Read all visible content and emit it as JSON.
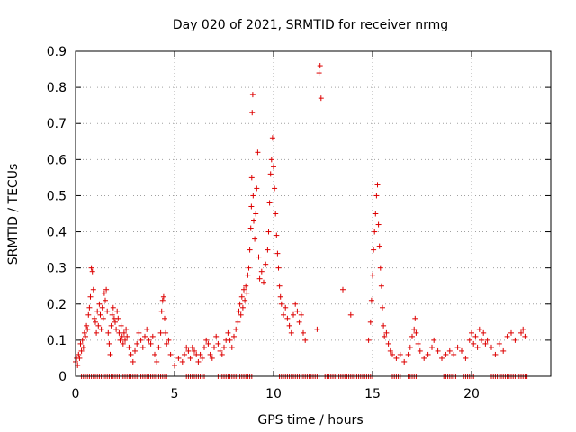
{
  "chart_data": {
    "type": "scatter",
    "title": "Day 020 of 2021, SRMTID for receiver nrmg",
    "xlabel": "GPS time / hours",
    "ylabel": "SRMTID / TECUs",
    "xlim": [
      0,
      24
    ],
    "ylim": [
      0,
      0.9
    ],
    "xticks": [
      0,
      5,
      10,
      15,
      20
    ],
    "yticks": [
      0,
      0.1,
      0.2,
      0.3,
      0.4,
      0.5,
      0.6,
      0.7,
      0.8,
      0.9
    ],
    "ytick_labels": [
      "0",
      "0.1",
      "0.2",
      "0.3",
      "0.4",
      "0.5",
      "0.6",
      "0.7",
      "0.8",
      "0.9"
    ],
    "grid": true,
    "marker": "+",
    "color": "#dd0000",
    "series": [
      {
        "name": "SRMTID",
        "points": [
          [
            0.0,
            0.04
          ],
          [
            0.05,
            0.05
          ],
          [
            0.1,
            0.03
          ],
          [
            0.15,
            0.06
          ],
          [
            0.2,
            0.05
          ],
          [
            0.25,
            0.09
          ],
          [
            0.3,
            0.07
          ],
          [
            0.35,
            0.1
          ],
          [
            0.4,
            0.08
          ],
          [
            0.45,
            0.12
          ],
          [
            0.5,
            0.11
          ],
          [
            0.55,
            0.14
          ],
          [
            0.6,
            0.13
          ],
          [
            0.65,
            0.17
          ],
          [
            0.7,
            0.19
          ],
          [
            0.75,
            0.22
          ],
          [
            0.8,
            0.3
          ],
          [
            0.85,
            0.29
          ],
          [
            0.9,
            0.24
          ],
          [
            0.95,
            0.16
          ],
          [
            1.0,
            0.15
          ],
          [
            1.05,
            0.12
          ],
          [
            1.1,
            0.18
          ],
          [
            1.15,
            0.14
          ],
          [
            1.2,
            0.2
          ],
          [
            1.25,
            0.17
          ],
          [
            1.3,
            0.13
          ],
          [
            1.35,
            0.19
          ],
          [
            1.4,
            0.16
          ],
          [
            1.45,
            0.23
          ],
          [
            1.5,
            0.21
          ],
          [
            1.55,
            0.24
          ],
          [
            1.6,
            0.18
          ],
          [
            1.65,
            0.12
          ],
          [
            1.7,
            0.09
          ],
          [
            1.75,
            0.06
          ],
          [
            1.8,
            0.14
          ],
          [
            1.85,
            0.17
          ],
          [
            1.9,
            0.19
          ],
          [
            1.95,
            0.16
          ],
          [
            2.0,
            0.15
          ],
          [
            2.05,
            0.13
          ],
          [
            2.1,
            0.18
          ],
          [
            2.15,
            0.16
          ],
          [
            2.2,
            0.12
          ],
          [
            2.25,
            0.1
          ],
          [
            2.3,
            0.14
          ],
          [
            2.35,
            0.11
          ],
          [
            2.4,
            0.09
          ],
          [
            2.45,
            0.12
          ],
          [
            2.5,
            0.1
          ],
          [
            2.55,
            0.13
          ],
          [
            2.6,
            0.11
          ],
          [
            2.7,
            0.08
          ],
          [
            2.8,
            0.06
          ],
          [
            2.9,
            0.04
          ],
          [
            3.0,
            0.07
          ],
          [
            3.1,
            0.09
          ],
          [
            3.2,
            0.12
          ],
          [
            3.3,
            0.1
          ],
          [
            3.4,
            0.08
          ],
          [
            3.5,
            0.11
          ],
          [
            3.6,
            0.13
          ],
          [
            3.7,
            0.1
          ],
          [
            3.8,
            0.09
          ],
          [
            3.9,
            0.11
          ],
          [
            4.0,
            0.06
          ],
          [
            4.1,
            0.04
          ],
          [
            4.2,
            0.08
          ],
          [
            4.3,
            0.12
          ],
          [
            4.35,
            0.18
          ],
          [
            4.4,
            0.21
          ],
          [
            4.45,
            0.22
          ],
          [
            4.5,
            0.16
          ],
          [
            4.55,
            0.12
          ],
          [
            4.6,
            0.09
          ],
          [
            4.7,
            0.1
          ],
          [
            4.8,
            0.06
          ],
          [
            5.0,
            0.03
          ],
          [
            5.2,
            0.05
          ],
          [
            5.4,
            0.04
          ],
          [
            5.5,
            0.06
          ],
          [
            5.6,
            0.08
          ],
          [
            5.7,
            0.07
          ],
          [
            5.8,
            0.05
          ],
          [
            5.9,
            0.08
          ],
          [
            6.0,
            0.07
          ],
          [
            6.1,
            0.06
          ],
          [
            6.2,
            0.04
          ],
          [
            6.3,
            0.06
          ],
          [
            6.4,
            0.05
          ],
          [
            6.5,
            0.08
          ],
          [
            6.6,
            0.1
          ],
          [
            6.7,
            0.09
          ],
          [
            6.8,
            0.06
          ],
          [
            6.9,
            0.05
          ],
          [
            7.0,
            0.08
          ],
          [
            7.1,
            0.11
          ],
          [
            7.2,
            0.09
          ],
          [
            7.3,
            0.07
          ],
          [
            7.4,
            0.06
          ],
          [
            7.5,
            0.08
          ],
          [
            7.6,
            0.1
          ],
          [
            7.7,
            0.12
          ],
          [
            7.8,
            0.1
          ],
          [
            7.9,
            0.08
          ],
          [
            8.0,
            0.11
          ],
          [
            8.1,
            0.13
          ],
          [
            8.2,
            0.15
          ],
          [
            8.25,
            0.18
          ],
          [
            8.3,
            0.2
          ],
          [
            8.35,
            0.17
          ],
          [
            8.4,
            0.22
          ],
          [
            8.45,
            0.19
          ],
          [
            8.5,
            0.24
          ],
          [
            8.55,
            0.21
          ],
          [
            8.6,
            0.25
          ],
          [
            8.65,
            0.23
          ],
          [
            8.7,
            0.28
          ],
          [
            8.75,
            0.3
          ],
          [
            8.8,
            0.35
          ],
          [
            8.85,
            0.41
          ],
          [
            8.88,
            0.47
          ],
          [
            8.9,
            0.55
          ],
          [
            8.92,
            0.73
          ],
          [
            8.95,
            0.78
          ],
          [
            8.97,
            0.5
          ],
          [
            9.0,
            0.43
          ],
          [
            9.05,
            0.38
          ],
          [
            9.1,
            0.45
          ],
          [
            9.15,
            0.52
          ],
          [
            9.2,
            0.62
          ],
          [
            9.25,
            0.33
          ],
          [
            9.3,
            0.27
          ],
          [
            9.4,
            0.29
          ],
          [
            9.5,
            0.26
          ],
          [
            9.6,
            0.31
          ],
          [
            9.7,
            0.35
          ],
          [
            9.75,
            0.4
          ],
          [
            9.8,
            0.48
          ],
          [
            9.85,
            0.56
          ],
          [
            9.9,
            0.6
          ],
          [
            9.95,
            0.66
          ],
          [
            10.0,
            0.58
          ],
          [
            10.05,
            0.52
          ],
          [
            10.1,
            0.45
          ],
          [
            10.15,
            0.39
          ],
          [
            10.2,
            0.34
          ],
          [
            10.25,
            0.3
          ],
          [
            10.3,
            0.25
          ],
          [
            10.35,
            0.22
          ],
          [
            10.4,
            0.2
          ],
          [
            10.5,
            0.17
          ],
          [
            10.6,
            0.19
          ],
          [
            10.7,
            0.16
          ],
          [
            10.8,
            0.14
          ],
          [
            10.9,
            0.12
          ],
          [
            11.0,
            0.17
          ],
          [
            11.1,
            0.2
          ],
          [
            11.2,
            0.18
          ],
          [
            11.3,
            0.15
          ],
          [
            11.4,
            0.17
          ],
          [
            11.5,
            0.12
          ],
          [
            11.6,
            0.1
          ],
          [
            12.2,
            0.13
          ],
          [
            12.3,
            0.84
          ],
          [
            12.35,
            0.86
          ],
          [
            12.4,
            0.77
          ],
          [
            13.5,
            0.24
          ],
          [
            13.9,
            0.17
          ],
          [
            14.8,
            0.1
          ],
          [
            14.9,
            0.15
          ],
          [
            14.95,
            0.21
          ],
          [
            15.0,
            0.28
          ],
          [
            15.05,
            0.35
          ],
          [
            15.1,
            0.4
          ],
          [
            15.15,
            0.45
          ],
          [
            15.2,
            0.5
          ],
          [
            15.25,
            0.53
          ],
          [
            15.3,
            0.42
          ],
          [
            15.35,
            0.36
          ],
          [
            15.4,
            0.3
          ],
          [
            15.45,
            0.25
          ],
          [
            15.5,
            0.19
          ],
          [
            15.55,
            0.14
          ],
          [
            15.6,
            0.11
          ],
          [
            15.7,
            0.12
          ],
          [
            15.8,
            0.09
          ],
          [
            15.9,
            0.07
          ],
          [
            16.0,
            0.06
          ],
          [
            16.2,
            0.05
          ],
          [
            16.4,
            0.06
          ],
          [
            16.6,
            0.04
          ],
          [
            16.8,
            0.06
          ],
          [
            16.9,
            0.08
          ],
          [
            17.0,
            0.11
          ],
          [
            17.1,
            0.13
          ],
          [
            17.15,
            0.16
          ],
          [
            17.2,
            0.12
          ],
          [
            17.3,
            0.09
          ],
          [
            17.4,
            0.07
          ],
          [
            17.6,
            0.05
          ],
          [
            17.8,
            0.06
          ],
          [
            18.0,
            0.08
          ],
          [
            18.1,
            0.1
          ],
          [
            18.3,
            0.07
          ],
          [
            18.5,
            0.05
          ],
          [
            18.7,
            0.06
          ],
          [
            18.9,
            0.07
          ],
          [
            19.1,
            0.06
          ],
          [
            19.3,
            0.08
          ],
          [
            19.5,
            0.07
          ],
          [
            19.7,
            0.05
          ],
          [
            19.9,
            0.1
          ],
          [
            20.0,
            0.12
          ],
          [
            20.1,
            0.09
          ],
          [
            20.2,
            0.11
          ],
          [
            20.3,
            0.08
          ],
          [
            20.4,
            0.13
          ],
          [
            20.5,
            0.1
          ],
          [
            20.6,
            0.12
          ],
          [
            20.7,
            0.09
          ],
          [
            20.8,
            0.1
          ],
          [
            21.0,
            0.08
          ],
          [
            21.2,
            0.06
          ],
          [
            21.4,
            0.09
          ],
          [
            21.6,
            0.07
          ],
          [
            21.8,
            0.11
          ],
          [
            22.0,
            0.12
          ],
          [
            22.2,
            0.1
          ],
          [
            22.5,
            0.12
          ],
          [
            22.6,
            0.13
          ],
          [
            22.7,
            0.11
          ]
        ],
        "zero_segments": [
          [
            0.3,
            4.6
          ],
          [
            5.6,
            5.9
          ],
          [
            6.0,
            6.5
          ],
          [
            7.2,
            8.9
          ],
          [
            10.3,
            12.3
          ],
          [
            12.6,
            15.0
          ],
          [
            16.0,
            16.4
          ],
          [
            16.8,
            17.2
          ],
          [
            18.6,
            19.2
          ],
          [
            19.6,
            20.1
          ],
          [
            21.0,
            22.8
          ]
        ]
      }
    ]
  }
}
